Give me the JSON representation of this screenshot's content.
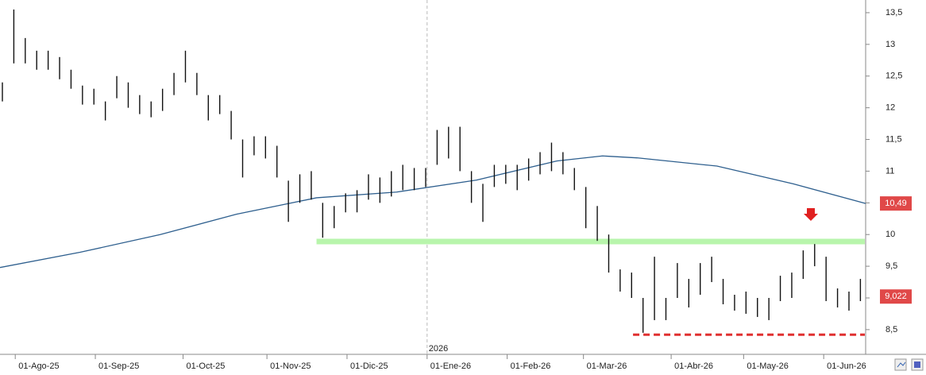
{
  "chart_data": {
    "type": "hlbar",
    "color": "#111111",
    "x": [
      0,
      3,
      6,
      9,
      12,
      15,
      18,
      21,
      24,
      27,
      30,
      33,
      36,
      39,
      42,
      45,
      48,
      51,
      54,
      57,
      60,
      63,
      66,
      69,
      72,
      75,
      78,
      81,
      84,
      87,
      90,
      93,
      96,
      99,
      102,
      105,
      108,
      111,
      114,
      117,
      120,
      123,
      126,
      129,
      132,
      135,
      138,
      141,
      144,
      147,
      150,
      153,
      156,
      159,
      162,
      165,
      168,
      171,
      174,
      177,
      180,
      183,
      186,
      189,
      192,
      195,
      198,
      201,
      204,
      207,
      210,
      213,
      216,
      219,
      222,
      225
    ],
    "high": [
      12.4,
      13.55,
      13.1,
      12.9,
      12.9,
      12.8,
      12.6,
      12.35,
      12.3,
      12.1,
      12.5,
      12.4,
      12.2,
      12.1,
      12.3,
      12.55,
      12.9,
      12.55,
      12.2,
      12.2,
      11.95,
      11.5,
      11.55,
      11.55,
      11.4,
      10.85,
      10.95,
      11.0,
      10.5,
      10.45,
      10.65,
      10.7,
      10.95,
      10.9,
      11.0,
      11.1,
      11.05,
      11.05,
      11.65,
      11.7,
      11.7,
      11.0,
      10.8,
      11.1,
      11.1,
      11.1,
      11.2,
      11.3,
      11.45,
      11.3,
      11.05,
      10.75,
      10.45,
      10.0,
      9.45,
      9.4,
      9.0,
      9.65,
      9.0,
      9.55,
      9.3,
      9.55,
      9.65,
      9.3,
      9.05,
      9.1,
      9.0,
      9.0,
      9.35,
      9.4,
      9.75,
      9.85,
      9.65,
      9.15,
      9.1,
      9.3
    ],
    "low": [
      12.1,
      12.7,
      12.7,
      12.6,
      12.6,
      12.45,
      12.3,
      12.05,
      12.05,
      11.8,
      12.15,
      12.0,
      11.9,
      11.85,
      11.95,
      12.2,
      12.4,
      12.2,
      11.8,
      11.9,
      11.5,
      10.9,
      11.25,
      11.2,
      10.9,
      10.2,
      10.5,
      10.55,
      9.95,
      10.1,
      10.35,
      10.35,
      10.55,
      10.5,
      10.6,
      10.7,
      10.7,
      10.75,
      11.1,
      11.2,
      11.0,
      10.5,
      10.2,
      10.75,
      10.8,
      10.7,
      10.85,
      10.95,
      11.0,
      10.95,
      10.7,
      10.1,
      9.9,
      9.4,
      9.1,
      9.0,
      8.45,
      8.65,
      8.65,
      9.0,
      8.85,
      9.05,
      9.25,
      8.9,
      8.8,
      8.75,
      8.7,
      8.65,
      8.95,
      9.0,
      9.3,
      9.5,
      8.95,
      8.85,
      8.8,
      8.95
    ],
    "ma": {
      "color": "#2e5f8e",
      "x": [
        0,
        21,
        42,
        62,
        83,
        104,
        125,
        146,
        158,
        167,
        188,
        208,
        227
      ],
      "values": [
        9.48,
        9.72,
        10.0,
        10.32,
        10.58,
        10.67,
        10.86,
        11.16,
        11.24,
        11.21,
        11.08,
        10.8,
        10.49
      ]
    },
    "levels": [
      {
        "value": 9.89,
        "x": [
          83,
          227
        ],
        "color": "#b8f5ac",
        "style": "solid"
      },
      {
        "value": 8.42,
        "x": [
          166,
          227
        ],
        "color": "#e03030",
        "style": "dashed"
      }
    ],
    "last_values": [
      {
        "value": 10.49,
        "label": "10,49",
        "color": "#e04848"
      },
      {
        "value": 9.022,
        "label": "9,022",
        "color": "#e04848"
      }
    ],
    "year_divider": {
      "x": 112,
      "label": "2026"
    },
    "xlim": [
      0,
      227
    ],
    "ylim": [
      8.11,
      13.7
    ],
    "xticks": [
      {
        "value": 4,
        "label": "01-Ago-25"
      },
      {
        "value": 25,
        "label": "01-Sep-25"
      },
      {
        "value": 48,
        "label": "01-Oct-25"
      },
      {
        "value": 70,
        "label": "01-Nov-25"
      },
      {
        "value": 91,
        "label": "01-Dic-25"
      },
      {
        "value": 112,
        "label": "01-Ene-26"
      },
      {
        "value": 133,
        "label": "01-Feb-26"
      },
      {
        "value": 153,
        "label": "01-Mar-26"
      },
      {
        "value": 176,
        "label": "01-Abr-26"
      },
      {
        "value": 195,
        "label": "01-May-26"
      },
      {
        "value": 216,
        "label": "01-Jun-26"
      }
    ],
    "yticks": [
      {
        "value": 13.5,
        "label": "13,5"
      },
      13,
      {
        "value": 12.5,
        "label": "12,5"
      },
      12,
      {
        "value": 11.5,
        "label": "11,5"
      },
      11,
      {
        "value": 10.5,
        "label": "10,5"
      },
      10,
      {
        "value": 9.5,
        "label": "9,5"
      },
      9,
      {
        "value": 8.5,
        "label": "8,5"
      }
    ]
  }
}
